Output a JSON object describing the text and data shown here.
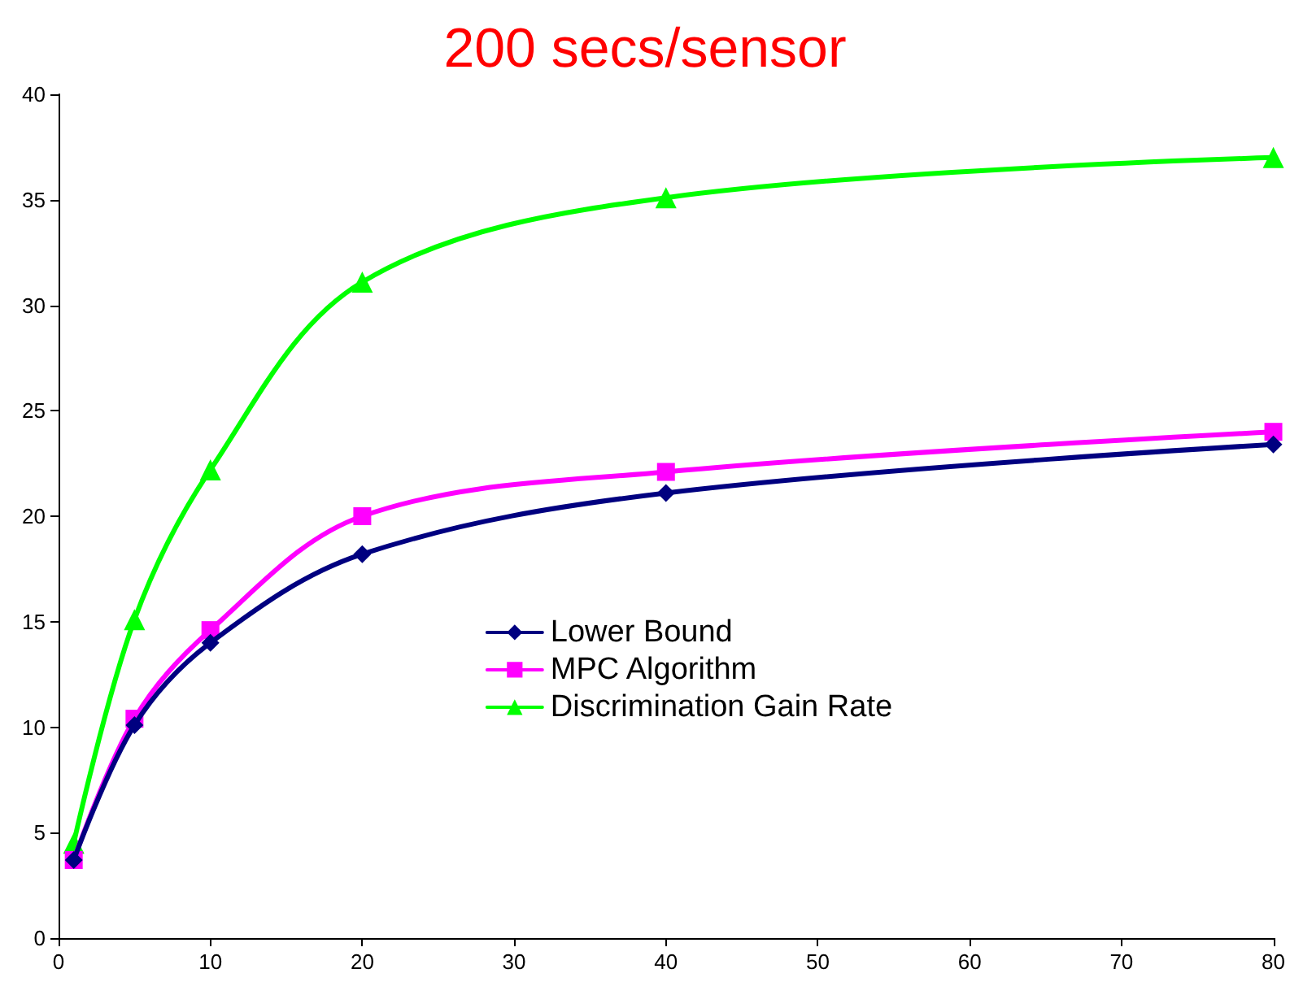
{
  "chart_data": {
    "type": "line",
    "title": "200 secs/sensor",
    "x": [
      1,
      5,
      10,
      20,
      40,
      80
    ],
    "series": [
      {
        "name": "Lower Bound",
        "color": "#000080",
        "marker": "diamond",
        "values": [
          3.7,
          10.1,
          14.0,
          18.2,
          21.1,
          23.4
        ]
      },
      {
        "name": "MPC Algorithm",
        "color": "#ff00ff",
        "marker": "square",
        "values": [
          3.7,
          10.4,
          14.6,
          20.0,
          22.1,
          24.0
        ]
      },
      {
        "name": "Discrimination Gain Rate",
        "color": "#00ff00",
        "marker": "triangle",
        "values": [
          4.5,
          15.1,
          22.2,
          31.1,
          35.1,
          37.0
        ]
      }
    ],
    "xlim": [
      0,
      80
    ],
    "xticks": [
      0,
      10,
      20,
      30,
      40,
      50,
      60,
      70,
      80
    ],
    "ylim": [
      0,
      40
    ],
    "yticks": [
      0,
      5,
      10,
      15,
      20,
      25,
      30,
      35,
      40
    ],
    "grid": false,
    "legend": "center",
    "line_style": "solid"
  }
}
